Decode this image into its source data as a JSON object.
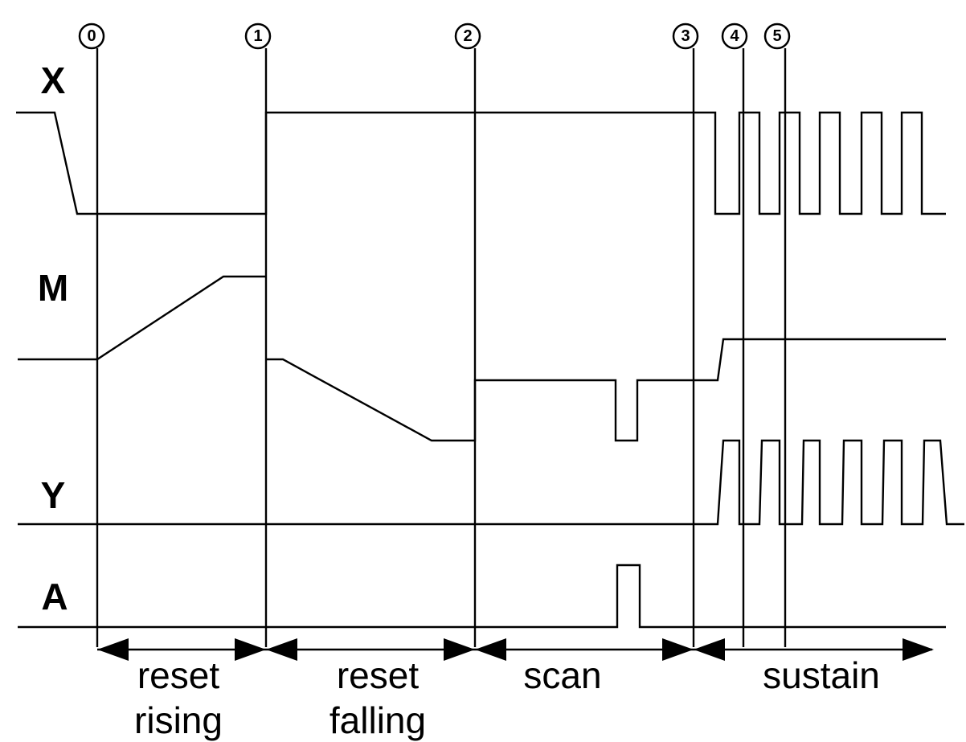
{
  "markers": [
    "0",
    "1",
    "2",
    "3",
    "4",
    "5"
  ],
  "signals": [
    "X",
    "M",
    "Y",
    "A"
  ],
  "phases": [
    {
      "lines": [
        "reset",
        "rising"
      ]
    },
    {
      "lines": [
        "reset",
        "falling"
      ]
    },
    {
      "lines": [
        "scan"
      ]
    },
    {
      "lines": [
        "sustain"
      ]
    }
  ]
}
